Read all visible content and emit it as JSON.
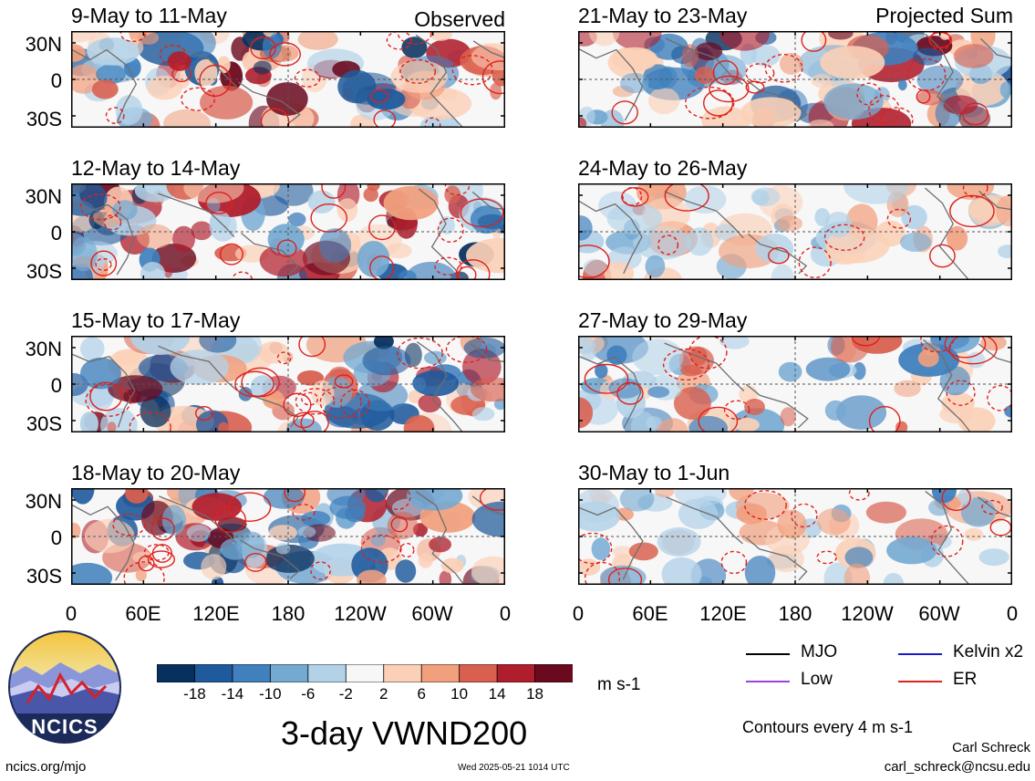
{
  "main_title": "3-day VWND200",
  "timestamp": "Wed 2025-05-21 1014 UTC",
  "site": "ncics.org/mjo",
  "logo_text": "NCICS",
  "author_name": "Carl Schreck",
  "author_email": "carl_schreck@ncsu.edu",
  "contour_note": "Contours every 4 m s-1",
  "units": "m s-1",
  "column_tags": {
    "left": "Observed",
    "right": "Projected Sum"
  },
  "lat_labels": [
    "30N",
    "0",
    "30S"
  ],
  "lon_labels": [
    "0",
    "60E",
    "120E",
    "180",
    "120W",
    "60W",
    "0"
  ],
  "colorbar": {
    "labels": [
      "-18",
      "-14",
      "-10",
      "-6",
      "-2",
      "2",
      "6",
      "10",
      "14",
      "18"
    ],
    "colors": [
      "#08305e",
      "#1f5a9c",
      "#3f80bd",
      "#74a9d2",
      "#b3d2e8",
      "#f7f7f7",
      "#fbd0b7",
      "#f1a07e",
      "#d9604f",
      "#b01e2d",
      "#6b0a1f"
    ]
  },
  "legend": [
    {
      "label": "MJO",
      "color": "#000000"
    },
    {
      "label": "Kelvin x2",
      "color": "#1a1acc"
    },
    {
      "label": "Low",
      "color": "#a040e0"
    },
    {
      "label": "ER",
      "color": "#e0201c"
    }
  ],
  "chart_data": [
    {
      "type": "heatmap",
      "title": "9-May to 11-May",
      "group": "Observed"
    },
    {
      "type": "heatmap",
      "title": "12-May to 14-May",
      "group": "Observed"
    },
    {
      "type": "heatmap",
      "title": "15-May to 17-May",
      "group": "Observed"
    },
    {
      "type": "heatmap",
      "title": "18-May to 20-May",
      "group": "Observed"
    },
    {
      "type": "heatmap",
      "title": "21-May to 23-May",
      "group": "Projected Sum"
    },
    {
      "type": "heatmap",
      "title": "24-May to 26-May",
      "group": "Projected Sum"
    },
    {
      "type": "heatmap",
      "title": "27-May to 29-May",
      "group": "Projected Sum"
    },
    {
      "type": "heatmap",
      "title": "30-May to 1-Jun",
      "group": "Projected Sum"
    }
  ]
}
